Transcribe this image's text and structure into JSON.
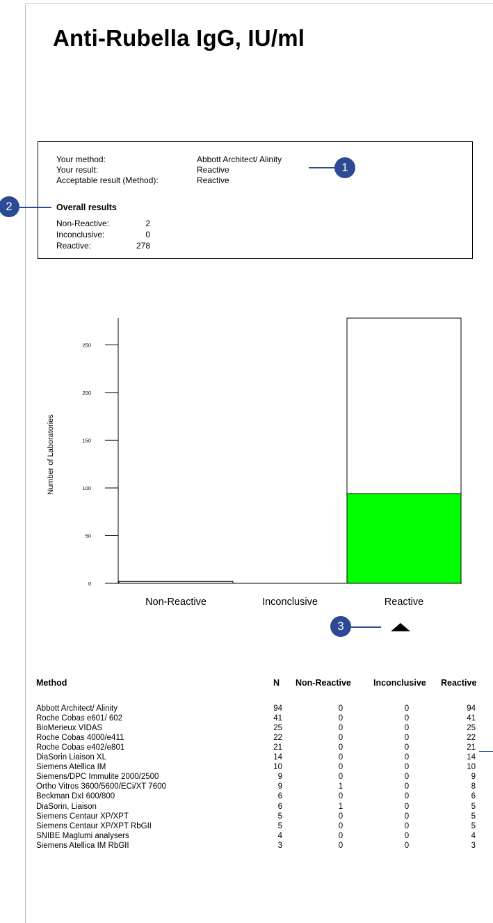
{
  "title": "Anti-Rubella IgG, IU/ml",
  "info": {
    "your_method_label": "Your method:",
    "your_method_value": "Abbott Architect/ Alinity",
    "your_result_label": "Your result:",
    "your_result_value": "Reactive",
    "acceptable_label": "Acceptable result (Method):",
    "acceptable_value": "Reactive"
  },
  "overall": {
    "title": "Overall results",
    "items": [
      {
        "label": "Non-Reactive:",
        "value": "2"
      },
      {
        "label": "Inconclusive:",
        "value": "0"
      },
      {
        "label": "Reactive:",
        "value": "278"
      }
    ]
  },
  "callouts": [
    "1",
    "2",
    "3"
  ],
  "chart_data": {
    "type": "bar",
    "ylabel": "Number of Laboratories",
    "xlabel": "",
    "ylim": [
      0,
      278
    ],
    "yticks": [
      0,
      50,
      100,
      150,
      200,
      250
    ],
    "categories": [
      "Non-Reactive",
      "Inconclusive",
      "Reactive"
    ],
    "series": [
      {
        "values": [
          2,
          0,
          278
        ],
        "color": "#ffffff"
      },
      {
        "values": [
          0,
          0,
          94
        ],
        "color": "#00ff00"
      }
    ],
    "grid": false,
    "highlight_category": "Reactive"
  },
  "table": {
    "headers": [
      "Method",
      "N",
      "Non-Reactive",
      "Inconclusive",
      "Reactive"
    ],
    "rows": [
      [
        "Abbott Architect/ Alinity",
        "94",
        "0",
        "0",
        "94"
      ],
      [
        "Roche Cobas e601/ 602",
        "41",
        "0",
        "0",
        "41"
      ],
      [
        "BioMerieux VIDAS",
        "25",
        "0",
        "0",
        "25"
      ],
      [
        "Roche Cobas 4000/e411",
        "22",
        "0",
        "0",
        "22"
      ],
      [
        "Roche Cobas e402/e801",
        "21",
        "0",
        "0",
        "21"
      ],
      [
        "DiaSorin Liaison XL",
        "14",
        "0",
        "0",
        "14"
      ],
      [
        "Siemens Atellica IM",
        "10",
        "0",
        "0",
        "10"
      ],
      [
        "Siemens/DPC Immulite 2000/2500",
        "9",
        "0",
        "0",
        "9"
      ],
      [
        "Ortho Vitros 3600/5600/ECi/XT 7600",
        "9",
        "1",
        "0",
        "8"
      ],
      [
        "Beckman DxI 600/800",
        "6",
        "0",
        "0",
        "6"
      ],
      [
        "DiaSorin, Liaison",
        "6",
        "1",
        "0",
        "5"
      ],
      [
        "Siemens Centaur XP/XPT",
        "5",
        "0",
        "0",
        "5"
      ],
      [
        "Siemens Centaur XP/XPT RbGII",
        "5",
        "0",
        "0",
        "5"
      ],
      [
        "SNIBE Maglumi analysers",
        "4",
        "0",
        "0",
        "4"
      ],
      [
        "Siemens Atellica IM RbGII",
        "3",
        "0",
        "0",
        "3"
      ]
    ]
  }
}
